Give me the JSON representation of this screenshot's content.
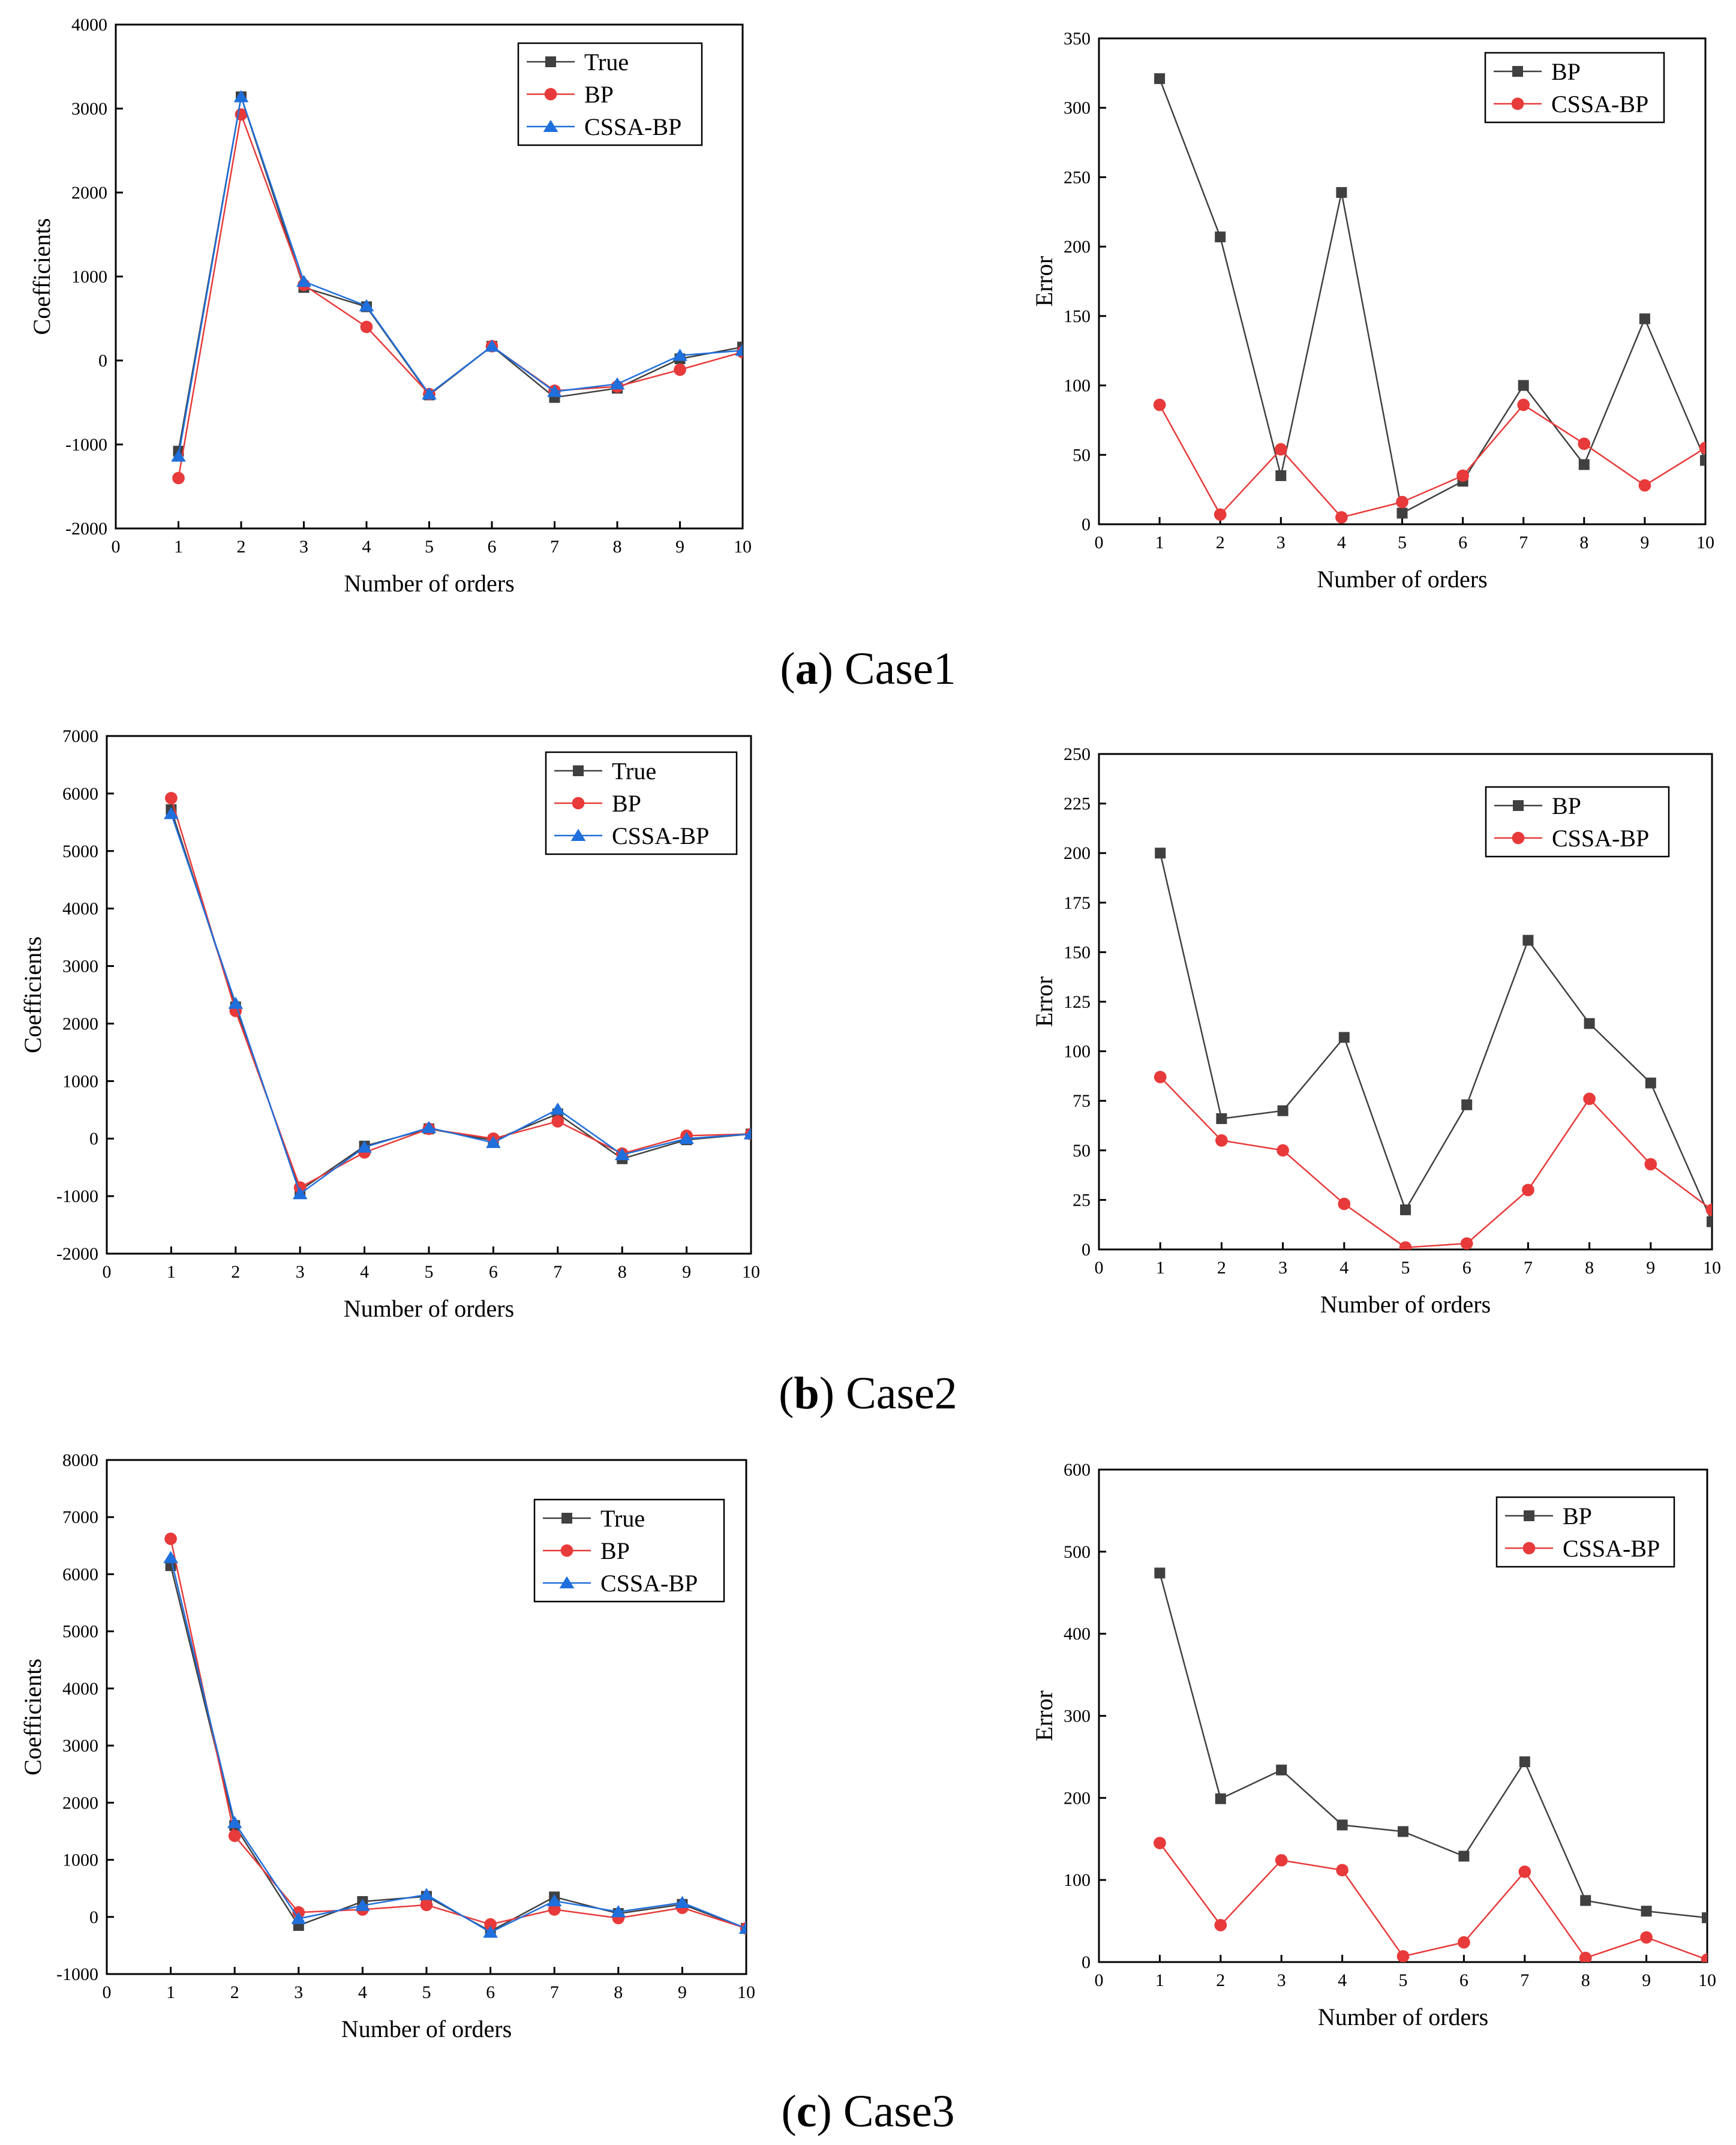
{
  "colors": {
    "true": "#404040",
    "bp": "#e83a3a",
    "cssa": "#1f6fdc",
    "axis": "#000000"
  },
  "captions": [
    {
      "letter": "a",
      "open": "(",
      "close": ")",
      "text": " Case1"
    },
    {
      "letter": "b",
      "open": "(",
      "close": ")",
      "text": " Case2"
    },
    {
      "letter": "c",
      "open": "(",
      "close": ")",
      "text": " Case3"
    }
  ],
  "chart_data": [
    {
      "id": "a-coef",
      "type": "line",
      "xlabel": "Number of orders",
      "ylabel": "Coefficients",
      "xlim": [
        0,
        10
      ],
      "xticks": [
        0,
        1,
        2,
        3,
        4,
        5,
        6,
        7,
        8,
        9,
        10
      ],
      "ylim": [
        -2000,
        4000
      ],
      "yticks": [
        -2000,
        -1000,
        0,
        1000,
        2000,
        3000,
        4000
      ],
      "x": [
        1,
        2,
        3,
        4,
        5,
        6,
        7,
        8,
        9,
        10
      ],
      "series": [
        {
          "name": "True",
          "marker": "square",
          "color": "#404040",
          "values": [
            -1080,
            3140,
            870,
            640,
            -410,
            170,
            -440,
            -330,
            20,
            160
          ]
        },
        {
          "name": "BP",
          "marker": "circle",
          "color": "#e83a3a",
          "values": [
            -1400,
            2930,
            900,
            400,
            -400,
            170,
            -360,
            -310,
            -110,
            100
          ]
        },
        {
          "name": "CSSA-BP",
          "marker": "triangle",
          "color": "#1f6fdc",
          "values": [
            -1140,
            3140,
            940,
            650,
            -400,
            170,
            -370,
            -280,
            60,
            120
          ]
        }
      ]
    },
    {
      "id": "a-err",
      "type": "line",
      "xlabel": "Number of orders",
      "ylabel": "Error",
      "xlim": [
        0,
        10
      ],
      "xticks": [
        0,
        1,
        2,
        3,
        4,
        5,
        6,
        7,
        8,
        9,
        10
      ],
      "ylim": [
        0,
        350
      ],
      "yticks": [
        0,
        50,
        100,
        150,
        200,
        250,
        300,
        350
      ],
      "x": [
        1,
        2,
        3,
        4,
        5,
        6,
        7,
        8,
        9,
        10
      ],
      "series": [
        {
          "name": "BP",
          "marker": "square",
          "color": "#404040",
          "values": [
            321,
            207,
            35,
            239,
            8,
            31,
            100,
            43,
            148,
            46
          ]
        },
        {
          "name": "CSSA-BP",
          "marker": "circle",
          "color": "#e83a3a",
          "values": [
            86,
            7,
            54,
            5,
            16,
            35,
            86,
            58,
            28,
            55
          ]
        }
      ]
    },
    {
      "id": "b-coef",
      "type": "line",
      "xlabel": "Number of orders",
      "ylabel": "Coefficients",
      "xlim": [
        0,
        10
      ],
      "xticks": [
        0,
        1,
        2,
        3,
        4,
        5,
        6,
        7,
        8,
        9,
        10
      ],
      "ylim": [
        -2000,
        7000
      ],
      "yticks": [
        -2000,
        -1000,
        0,
        1000,
        2000,
        3000,
        4000,
        5000,
        6000,
        7000
      ],
      "x": [
        1,
        2,
        3,
        4,
        5,
        6,
        7,
        8,
        9,
        10
      ],
      "series": [
        {
          "name": "True",
          "marker": "square",
          "color": "#404040",
          "values": [
            5720,
            2290,
            -900,
            -130,
            170,
            -30,
            430,
            -350,
            -20,
            80
          ]
        },
        {
          "name": "BP",
          "marker": "circle",
          "color": "#e83a3a",
          "values": [
            5920,
            2220,
            -850,
            -240,
            170,
            0,
            300,
            -260,
            50,
            80
          ]
        },
        {
          "name": "CSSA-BP",
          "marker": "triangle",
          "color": "#1f6fdc",
          "values": [
            5650,
            2350,
            -960,
            -150,
            190,
            -70,
            510,
            -280,
            0,
            80
          ]
        }
      ]
    },
    {
      "id": "b-err",
      "type": "line",
      "xlabel": "Number of orders",
      "ylabel": "Error",
      "xlim": [
        0,
        10
      ],
      "xticks": [
        0,
        1,
        2,
        3,
        4,
        5,
        6,
        7,
        8,
        9,
        10
      ],
      "ylim": [
        0,
        250
      ],
      "yticks": [
        0,
        25,
        50,
        75,
        100,
        125,
        150,
        175,
        200,
        225,
        250
      ],
      "x": [
        1,
        2,
        3,
        4,
        5,
        6,
        7,
        8,
        9,
        10
      ],
      "series": [
        {
          "name": "BP",
          "marker": "square",
          "color": "#404040",
          "values": [
            200,
            66,
            70,
            107,
            20,
            73,
            156,
            114,
            84,
            14
          ]
        },
        {
          "name": "CSSA-BP",
          "marker": "circle",
          "color": "#e83a3a",
          "values": [
            87,
            55,
            50,
            23,
            1,
            3,
            30,
            76,
            43,
            20
          ]
        }
      ]
    },
    {
      "id": "c-coef",
      "type": "line",
      "xlabel": "Number of orders",
      "ylabel": "Coefficients",
      "xlim": [
        0,
        10
      ],
      "xticks": [
        0,
        1,
        2,
        3,
        4,
        5,
        6,
        7,
        8,
        9,
        10
      ],
      "ylim": [
        -1000,
        8000
      ],
      "yticks": [
        -1000,
        0,
        1000,
        2000,
        3000,
        4000,
        5000,
        6000,
        7000,
        8000
      ],
      "x": [
        1,
        2,
        3,
        4,
        5,
        6,
        7,
        8,
        9,
        10
      ],
      "series": [
        {
          "name": "True",
          "marker": "square",
          "color": "#404040",
          "values": [
            6150,
            1600,
            -150,
            270,
            360,
            -250,
            350,
            60,
            220,
            -200
          ]
        },
        {
          "name": "BP",
          "marker": "circle",
          "color": "#e83a3a",
          "values": [
            6620,
            1420,
            80,
            130,
            210,
            -130,
            130,
            -20,
            160,
            -200
          ]
        },
        {
          "name": "CSSA-BP",
          "marker": "triangle",
          "color": "#1f6fdc",
          "values": [
            6290,
            1650,
            -30,
            200,
            390,
            -270,
            280,
            90,
            250,
            -200
          ]
        }
      ]
    },
    {
      "id": "c-err",
      "type": "line",
      "xlabel": "Number of orders",
      "ylabel": "Error",
      "xlim": [
        0,
        10
      ],
      "xticks": [
        0,
        1,
        2,
        3,
        4,
        5,
        6,
        7,
        8,
        9,
        10
      ],
      "ylim": [
        0,
        600
      ],
      "yticks": [
        0,
        100,
        200,
        300,
        400,
        500,
        600
      ],
      "x": [
        1,
        2,
        3,
        4,
        5,
        6,
        7,
        8,
        9,
        10
      ],
      "series": [
        {
          "name": "BP",
          "marker": "square",
          "color": "#404040",
          "values": [
            474,
            199,
            234,
            167,
            159,
            129,
            244,
            75,
            62,
            54
          ]
        },
        {
          "name": "CSSA-BP",
          "marker": "circle",
          "color": "#e83a3a",
          "values": [
            145,
            45,
            124,
            112,
            7,
            24,
            110,
            5,
            30,
            3
          ]
        }
      ]
    }
  ]
}
